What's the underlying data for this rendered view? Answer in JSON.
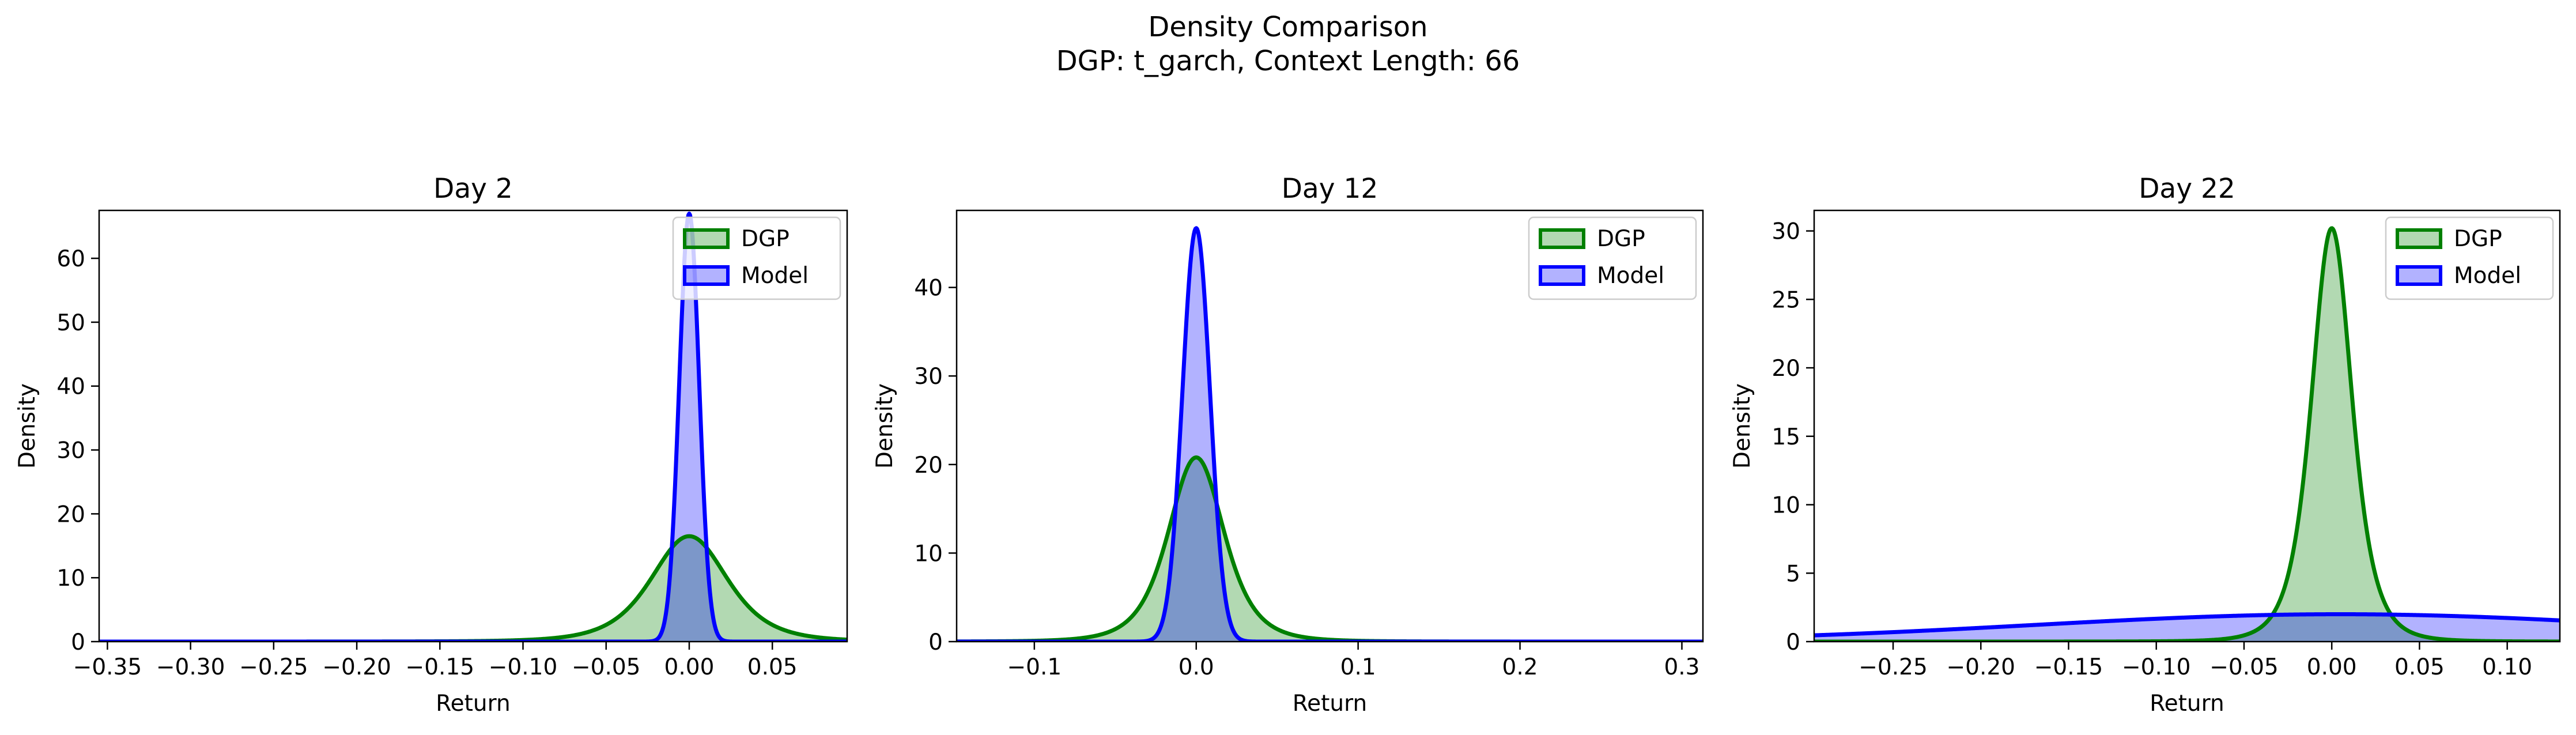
{
  "figure": {
    "title_line1": "Density Comparison",
    "title_line2": "DGP: t_garch, Context Length: 66"
  },
  "colors": {
    "dgp_line": "#008000",
    "dgp_fill": "#b2dab2",
    "model_line": "#0000ff",
    "model_fill": "#b2b2ff",
    "overlap_fill": "#5f7fbc"
  },
  "chart_data": [
    {
      "type": "area",
      "title": "Day 2",
      "xlabel": "Return",
      "ylabel": "Density",
      "xlim": [
        -0.355,
        0.095
      ],
      "ylim": [
        0,
        67.5
      ],
      "xticks": [
        -0.35,
        -0.3,
        -0.25,
        -0.2,
        -0.15,
        -0.1,
        -0.05,
        0.0,
        0.05
      ],
      "xtick_labels": [
        "−0.35",
        "−0.30",
        "−0.25",
        "−0.20",
        "−0.15",
        "−0.10",
        "−0.05",
        "0.00",
        "0.05"
      ],
      "yticks": [
        0,
        10,
        20,
        30,
        40,
        50,
        60
      ],
      "ytick_labels": [
        "0",
        "10",
        "20",
        "30",
        "40",
        "50",
        "60"
      ],
      "legend": {
        "position": "top-right",
        "entries": [
          "DGP",
          "Model"
        ]
      },
      "series": [
        {
          "name": "DGP",
          "kind": "t",
          "peak": 16.5,
          "center": 0.0,
          "scale": 0.024,
          "df": 4
        },
        {
          "name": "Model",
          "kind": "normal",
          "peak": 67,
          "center": 0.0,
          "scale": 0.006
        }
      ]
    },
    {
      "type": "area",
      "title": "Day 12",
      "xlabel": "Return",
      "ylabel": "Density",
      "xlim": [
        -0.148,
        0.313
      ],
      "ylim": [
        0,
        48.7
      ],
      "xticks": [
        -0.1,
        0.0,
        0.1,
        0.2,
        0.3
      ],
      "xtick_labels": [
        "−0.1",
        "0.0",
        "0.1",
        "0.2",
        "0.3"
      ],
      "yticks": [
        0,
        10,
        20,
        30,
        40
      ],
      "ytick_labels": [
        "0",
        "10",
        "20",
        "30",
        "40"
      ],
      "legend": {
        "position": "top-right",
        "entries": [
          "DGP",
          "Model"
        ]
      },
      "series": [
        {
          "name": "DGP",
          "kind": "t",
          "peak": 20.8,
          "center": 0.0,
          "scale": 0.018,
          "df": 4
        },
        {
          "name": "Model",
          "kind": "normal",
          "peak": 46.7,
          "center": 0.0,
          "scale": 0.0085
        }
      ]
    },
    {
      "type": "area",
      "title": "Day 22",
      "xlabel": "Return",
      "ylabel": "Density",
      "xlim": [
        -0.295,
        0.13
      ],
      "ylim": [
        0,
        31.5
      ],
      "xticks": [
        -0.25,
        -0.2,
        -0.15,
        -0.1,
        -0.05,
        0.0,
        0.05,
        0.1
      ],
      "xtick_labels": [
        "−0.25",
        "−0.20",
        "−0.15",
        "−0.10",
        "−0.05",
        "0.00",
        "0.05",
        "0.10"
      ],
      "yticks": [
        0,
        5,
        10,
        15,
        20,
        25,
        30
      ],
      "ytick_labels": [
        "0",
        "5",
        "10",
        "15",
        "20",
        "25",
        "30"
      ],
      "legend": {
        "position": "top-right",
        "entries": [
          "DGP",
          "Model"
        ]
      },
      "series": [
        {
          "name": "DGP",
          "kind": "t",
          "peak": 30.2,
          "center": 0.0,
          "scale": 0.012,
          "df": 4
        },
        {
          "name": "Model",
          "kind": "normal",
          "peak": 2.0,
          "center": 0.005,
          "scale": 0.175
        }
      ]
    }
  ]
}
